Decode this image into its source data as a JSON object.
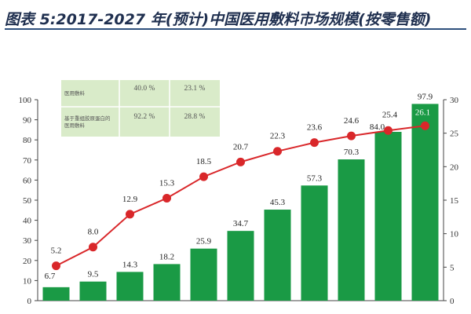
{
  "header": {
    "title": "图表 5:2017-2027 年(预计)中国医用敷料市场规模(按零售额)"
  },
  "chart_data": {
    "type": "bar",
    "categories": [
      "2017",
      "2018",
      "2019",
      "2020",
      "2021",
      "2022",
      "2023",
      "2024",
      "2025",
      "2026",
      "2027"
    ],
    "series": [
      {
        "name": "",
        "type": "bar",
        "axis": "left",
        "values": [
          6.7,
          9.5,
          14.3,
          18.2,
          25.9,
          34.7,
          45.3,
          57.3,
          70.3,
          84.0,
          97.9
        ]
      },
      {
        "name": "",
        "type": "line",
        "axis": "right",
        "values": [
          5.2,
          8.0,
          12.9,
          15.3,
          18.5,
          20.7,
          22.3,
          23.6,
          24.6,
          25.4,
          26.1
        ]
      }
    ],
    "y_left": {
      "ticks": [
        0,
        10,
        20,
        30,
        40,
        50,
        60,
        70,
        80,
        90,
        100
      ],
      "ylim": [
        0,
        100
      ]
    },
    "y_right": {
      "ticks": [
        0,
        5,
        10,
        15,
        20,
        25,
        30
      ],
      "ylim": [
        0,
        30
      ]
    },
    "xlabel": "",
    "ylabel": "",
    "colors": {
      "bar": "#1a9a45",
      "line": "#d9272a",
      "table_bg": "#d9ebc9"
    },
    "inset_table": {
      "rows": [
        {
          "label": "医用敷料",
          "v1": "40.0 %",
          "v2": "23.1 %"
        },
        {
          "label": "基于重组胶原蛋白的医用敷料",
          "v1": "92.2 %",
          "v2": "28.8 %"
        }
      ]
    }
  }
}
